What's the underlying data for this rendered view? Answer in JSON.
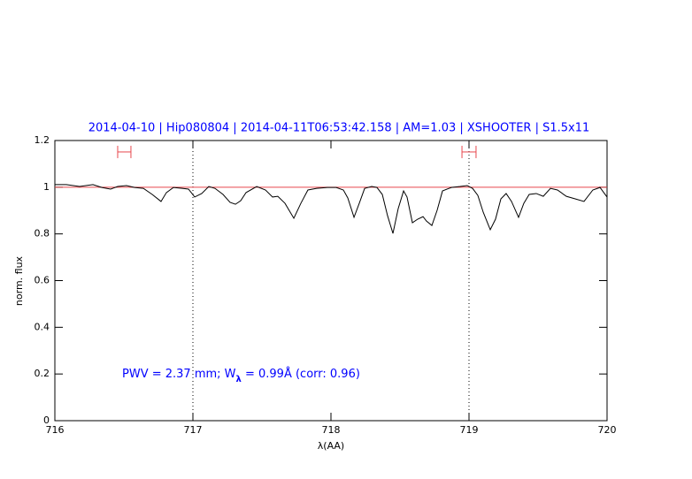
{
  "chart_data": {
    "type": "line",
    "title": "2014-04-10 | Hip080804 | 2014-04-11T06:53:42.158 | AM=1.03 | XSHOOTER | S1.5x11",
    "x_label": "λ(AA)",
    "y_label": "norm. flux",
    "annotation": [
      "PWV = 2.37 mm; W",
      "λ",
      " = 0.99Å (corr: 0.96)"
    ],
    "xlim": [
      716,
      720
    ],
    "ylim": [
      0,
      1.2
    ],
    "xticks": [
      716,
      717,
      718,
      719,
      720
    ],
    "yticks": [
      0,
      0.2,
      0.4,
      0.6,
      0.8,
      1,
      1.2
    ],
    "color": "#000000",
    "x": [
      716.0,
      716.083,
      716.179,
      716.276,
      716.34,
      716.404,
      716.455,
      716.519,
      716.577,
      716.641,
      716.705,
      716.769,
      716.808,
      716.859,
      716.923,
      716.968,
      717.013,
      717.064,
      717.115,
      717.16,
      717.218,
      717.269,
      717.308,
      717.346,
      717.385,
      717.462,
      717.526,
      717.577,
      717.615,
      717.667,
      717.731,
      717.782,
      717.833,
      717.897,
      717.974,
      718.038,
      718.09,
      718.122,
      718.167,
      718.205,
      718.244,
      718.295,
      718.333,
      718.372,
      718.41,
      718.449,
      718.487,
      718.526,
      718.551,
      718.59,
      718.628,
      718.667,
      718.692,
      718.731,
      718.769,
      718.808,
      718.872,
      718.936,
      718.987,
      719.026,
      719.064,
      719.103,
      719.154,
      719.192,
      719.231,
      719.269,
      719.308,
      719.359,
      719.397,
      719.436,
      719.487,
      719.538,
      719.59,
      719.641,
      719.705,
      719.769,
      719.833,
      719.897,
      719.949,
      720.0
    ],
    "values": [
      1.011,
      1.011,
      1.003,
      1.011,
      0.999,
      0.992,
      1.003,
      1.007,
      0.999,
      0.995,
      0.969,
      0.939,
      0.977,
      0.999,
      0.995,
      0.992,
      0.958,
      0.973,
      1.003,
      0.995,
      0.969,
      0.935,
      0.927,
      0.942,
      0.977,
      1.003,
      0.988,
      0.958,
      0.961,
      0.931,
      0.867,
      0.931,
      0.988,
      0.995,
      0.999,
      0.999,
      0.988,
      0.954,
      0.871,
      0.931,
      0.995,
      1.003,
      0.999,
      0.969,
      0.878,
      0.802,
      0.908,
      0.984,
      0.958,
      0.848,
      0.863,
      0.874,
      0.855,
      0.836,
      0.901,
      0.984,
      0.999,
      1.003,
      1.007,
      0.995,
      0.965,
      0.893,
      0.818,
      0.863,
      0.95,
      0.973,
      0.939,
      0.871,
      0.931,
      0.969,
      0.973,
      0.961,
      0.995,
      0.988,
      0.961,
      0.95,
      0.939,
      0.988,
      0.999,
      0.958
    ],
    "reference_line": {
      "y": 1,
      "color": "#e8474c"
    },
    "vlines": [
      717,
      719
    ],
    "error_markers": [
      {
        "x": [
          716.455,
          716.551
        ],
        "y": 1.151
      },
      {
        "x": [
          718.949,
          719.051
        ],
        "y": 1.151
      }
    ],
    "marker_color": "#e8474c",
    "text_color": "#0000ff"
  }
}
